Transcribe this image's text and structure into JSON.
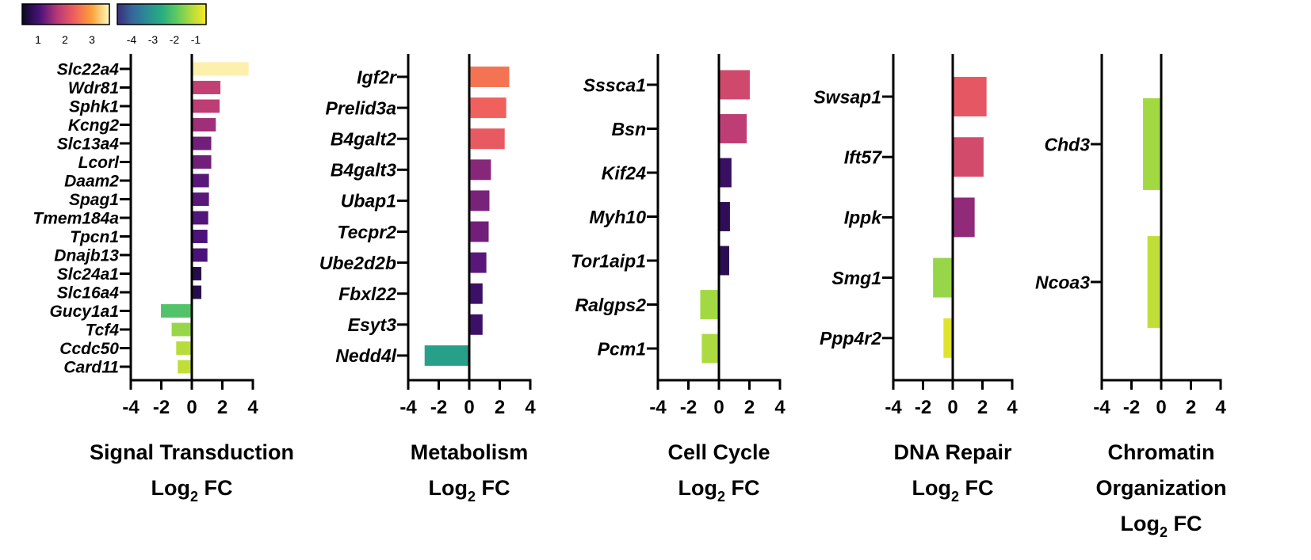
{
  "colorbars": [
    {
      "name": "positive",
      "ticks": [
        "1",
        "2",
        "3"
      ],
      "range": [
        0.3,
        3.8
      ],
      "stops": [
        "#0b0924",
        "#4a127a",
        "#b73779",
        "#f0605d",
        "#fba238",
        "#fcfdbf"
      ]
    },
    {
      "name": "negative",
      "ticks": [
        "-4",
        "-3",
        "-2",
        "-1"
      ],
      "range": [
        -4.9,
        -0.3
      ],
      "stops": [
        "#3b2d7a",
        "#35679a",
        "#2a8c96",
        "#27ad81",
        "#5ec962",
        "#b0dc3d",
        "#fde725"
      ]
    }
  ],
  "chart_data": [
    {
      "type": "bar",
      "orientation": "horizontal",
      "title_line1": "Signal Transduction",
      "title_line2_base": "Log",
      "title_line2_sub": "2",
      "title_line2_rest": " FC",
      "xlim": [
        -4,
        4
      ],
      "xticks": [
        "-4",
        "-2",
        "0",
        "2",
        "4"
      ],
      "categories": [
        "Slc22a4",
        "Wdr81",
        "Sphk1",
        "Kcng2",
        "Slc13a4",
        "Lcorl",
        "Daam2",
        "Spag1",
        "Tmem184a",
        "Tpcn1",
        "Dnajb13",
        "Slc24a1",
        "Slc16a4",
        "Gucy1a1",
        "Tcf4",
        "Ccdc50",
        "Card11"
      ],
      "values": [
        3.7,
        1.85,
        1.8,
        1.55,
        1.25,
        1.25,
        1.1,
        1.1,
        1.05,
        1.0,
        1.0,
        0.6,
        0.6,
        -2.0,
        -1.3,
        -1.0,
        -0.9
      ]
    },
    {
      "type": "bar",
      "orientation": "horizontal",
      "title_line1": "Metabolism",
      "title_line2_base": "Log",
      "title_line2_sub": "2",
      "title_line2_rest": " FC",
      "xlim": [
        -4,
        4
      ],
      "xticks": [
        "-4",
        "-2",
        "0",
        "2",
        "4"
      ],
      "categories": [
        "Igf2r",
        "Prelid3a",
        "B4galt2",
        "B4galt3",
        "Ubap1",
        "Tecpr2",
        "Ube2d2b",
        "Fbxl22",
        "Esyt3",
        "Nedd4l"
      ],
      "values": [
        2.6,
        2.4,
        2.3,
        1.4,
        1.3,
        1.25,
        1.1,
        0.85,
        0.85,
        -2.9
      ]
    },
    {
      "type": "bar",
      "orientation": "horizontal",
      "title_line1": "Cell Cycle",
      "title_line2_base": "Log",
      "title_line2_sub": "2",
      "title_line2_rest": " FC",
      "xlim": [
        -4,
        4
      ],
      "xticks": [
        "-4",
        "-2",
        "0",
        "2",
        "4"
      ],
      "categories": [
        "Sssca1",
        "Bsn",
        "Kif24",
        "Myh10",
        "Tor1aip1",
        "Ralgps2",
        "Pcm1"
      ],
      "values": [
        2.0,
        1.8,
        0.8,
        0.7,
        0.65,
        -1.2,
        -1.1
      ]
    },
    {
      "type": "bar",
      "orientation": "horizontal",
      "title_line1": "DNA Repair",
      "title_line2_base": "Log",
      "title_line2_sub": "2",
      "title_line2_rest": " FC",
      "xlim": [
        -4,
        4
      ],
      "xticks": [
        "-4",
        "-2",
        "0",
        "2",
        "4"
      ],
      "categories": [
        "Swsap1",
        "Ift57",
        "Ippk",
        "Smg1",
        "Ppp4r2"
      ],
      "values": [
        2.25,
        2.05,
        1.45,
        -1.3,
        -0.6
      ]
    },
    {
      "type": "bar",
      "orientation": "horizontal",
      "title_line1": "Chromatin",
      "title_line1b": "Organization",
      "title_line2_base": "Log",
      "title_line2_sub": "2",
      "title_line2_rest": " FC",
      "xlim": [
        -4,
        4
      ],
      "xticks": [
        "-4",
        "-2",
        "0",
        "2",
        "4"
      ],
      "categories": [
        "Chd3",
        "Ncoa3"
      ],
      "values": [
        -1.2,
        -0.9
      ]
    }
  ]
}
